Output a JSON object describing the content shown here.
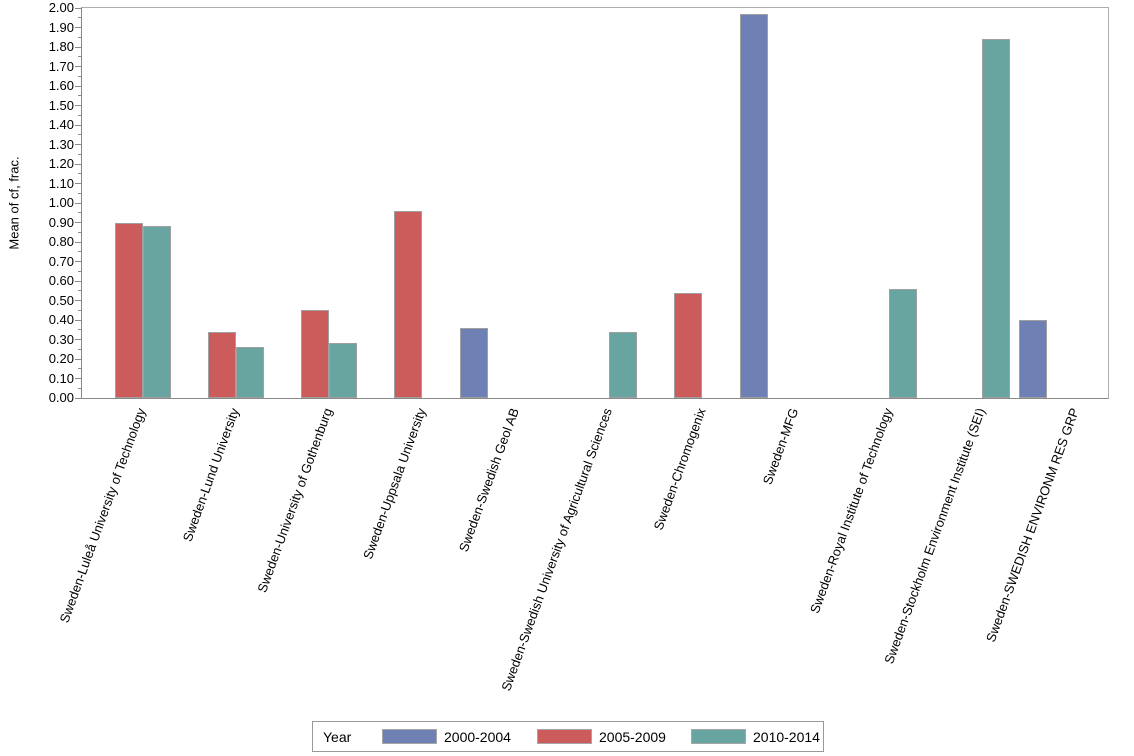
{
  "chart_data": {
    "type": "bar",
    "title": "",
    "xlabel": "",
    "ylabel": "Mean of cf, frac.",
    "ylim": [
      0,
      2.0
    ],
    "ytick_step": 0.1,
    "yminor_step": 0.05,
    "ytick_format_decimals": 2,
    "grid": false,
    "legend_title": "Year",
    "legend_position": "bottom",
    "x_label_rotation_deg": -70,
    "categories": [
      "Sweden-Luleå University of Technology",
      "Sweden-Lund University",
      "Sweden-University of Gothenburg",
      "Sweden-Uppsala University",
      "Sweden-Swedish Geol AB",
      "Sweden-Swedish University of Agricultural Sciences",
      "Sweden-Chromogenix",
      "Sweden-MFG",
      "Sweden-Royal Institute of Technology",
      "Sweden-Stockholm Environment Institute (SEI)",
      "Sweden-SWEDISH ENVIRONM RES GRP"
    ],
    "series": [
      {
        "name": "2000-2004",
        "color": "#6F80B5",
        "values": [
          null,
          null,
          null,
          null,
          0.36,
          null,
          null,
          1.97,
          null,
          null,
          0.4
        ]
      },
      {
        "name": "2005-2009",
        "color": "#CC5B5B",
        "values": [
          0.9,
          0.34,
          0.45,
          0.96,
          null,
          null,
          0.54,
          null,
          null,
          null,
          null
        ]
      },
      {
        "name": "2010-2014",
        "color": "#69A5A0",
        "values": [
          0.88,
          0.26,
          0.28,
          null,
          null,
          0.34,
          null,
          null,
          0.56,
          1.84,
          null
        ]
      }
    ]
  }
}
